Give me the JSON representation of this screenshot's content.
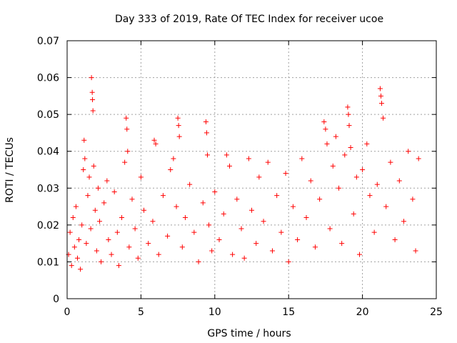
{
  "chart_data": {
    "type": "scatter",
    "title": "Day 333 of 2019, Rate Of TEC Index for receiver ucoe",
    "xlabel": "GPS time / hours",
    "ylabel": "ROTI / TECUs",
    "xlim": [
      0,
      25
    ],
    "ylim": [
      0,
      0.07
    ],
    "xticks": [
      0,
      5,
      10,
      15,
      20,
      25
    ],
    "xtick_labels": [
      "0",
      "5",
      "10",
      "15",
      "20",
      "25"
    ],
    "yticks": [
      0,
      0.01,
      0.02,
      0.03,
      0.04,
      0.05,
      0.06,
      0.07
    ],
    "ytick_labels": [
      "0",
      "0.01",
      "0.02",
      "0.03",
      "0.04",
      "0.05",
      "0.06",
      "0.07"
    ],
    "grid": true,
    "marker": "+",
    "color": "#ff0000",
    "series": [
      {
        "name": "ROTI",
        "points": [
          [
            0.1,
            0.012
          ],
          [
            0.2,
            0.018
          ],
          [
            0.3,
            0.009
          ],
          [
            0.4,
            0.022
          ],
          [
            0.5,
            0.014
          ],
          [
            0.6,
            0.025
          ],
          [
            0.7,
            0.011
          ],
          [
            0.8,
            0.016
          ],
          [
            0.9,
            0.008
          ],
          [
            1.0,
            0.02
          ],
          [
            1.1,
            0.035
          ],
          [
            1.15,
            0.043
          ],
          [
            1.2,
            0.038
          ],
          [
            1.3,
            0.015
          ],
          [
            1.4,
            0.028
          ],
          [
            1.5,
            0.033
          ],
          [
            1.6,
            0.019
          ],
          [
            1.65,
            0.06
          ],
          [
            1.7,
            0.056
          ],
          [
            1.72,
            0.054
          ],
          [
            1.75,
            0.051
          ],
          [
            1.8,
            0.036
          ],
          [
            1.9,
            0.024
          ],
          [
            2.0,
            0.013
          ],
          [
            2.1,
            0.03
          ],
          [
            2.2,
            0.021
          ],
          [
            2.3,
            0.01
          ],
          [
            2.5,
            0.026
          ],
          [
            2.7,
            0.032
          ],
          [
            2.8,
            0.016
          ],
          [
            3.0,
            0.012
          ],
          [
            3.2,
            0.029
          ],
          [
            3.4,
            0.018
          ],
          [
            3.5,
            0.009
          ],
          [
            3.7,
            0.022
          ],
          [
            3.9,
            0.037
          ],
          [
            4.0,
            0.049
          ],
          [
            4.05,
            0.046
          ],
          [
            4.1,
            0.04
          ],
          [
            4.2,
            0.014
          ],
          [
            4.4,
            0.027
          ],
          [
            4.6,
            0.019
          ],
          [
            4.8,
            0.011
          ],
          [
            5.0,
            0.033
          ],
          [
            5.2,
            0.024
          ],
          [
            5.5,
            0.015
          ],
          [
            5.8,
            0.021
          ],
          [
            5.9,
            0.043
          ],
          [
            6.0,
            0.042
          ],
          [
            6.2,
            0.012
          ],
          [
            6.5,
            0.028
          ],
          [
            6.8,
            0.017
          ],
          [
            7.0,
            0.035
          ],
          [
            7.2,
            0.038
          ],
          [
            7.4,
            0.025
          ],
          [
            7.5,
            0.049
          ],
          [
            7.55,
            0.047
          ],
          [
            7.6,
            0.044
          ],
          [
            7.8,
            0.014
          ],
          [
            8.0,
            0.022
          ],
          [
            8.3,
            0.031
          ],
          [
            8.6,
            0.018
          ],
          [
            8.9,
            0.01
          ],
          [
            9.2,
            0.026
          ],
          [
            9.4,
            0.048
          ],
          [
            9.45,
            0.045
          ],
          [
            9.5,
            0.039
          ],
          [
            9.6,
            0.02
          ],
          [
            9.8,
            0.013
          ],
          [
            10.0,
            0.029
          ],
          [
            10.3,
            0.016
          ],
          [
            10.6,
            0.023
          ],
          [
            10.8,
            0.039
          ],
          [
            11.0,
            0.036
          ],
          [
            11.2,
            0.012
          ],
          [
            11.5,
            0.027
          ],
          [
            11.8,
            0.019
          ],
          [
            12.0,
            0.011
          ],
          [
            12.3,
            0.038
          ],
          [
            12.5,
            0.024
          ],
          [
            12.8,
            0.015
          ],
          [
            13.0,
            0.033
          ],
          [
            13.3,
            0.021
          ],
          [
            13.6,
            0.037
          ],
          [
            13.9,
            0.013
          ],
          [
            14.2,
            0.028
          ],
          [
            14.5,
            0.018
          ],
          [
            14.8,
            0.034
          ],
          [
            15.0,
            0.01
          ],
          [
            15.3,
            0.025
          ],
          [
            15.6,
            0.016
          ],
          [
            15.9,
            0.038
          ],
          [
            16.2,
            0.022
          ],
          [
            16.5,
            0.032
          ],
          [
            16.8,
            0.014
          ],
          [
            17.1,
            0.027
          ],
          [
            17.4,
            0.048
          ],
          [
            17.5,
            0.046
          ],
          [
            17.6,
            0.042
          ],
          [
            17.8,
            0.019
          ],
          [
            18.0,
            0.036
          ],
          [
            18.2,
            0.044
          ],
          [
            18.4,
            0.03
          ],
          [
            18.6,
            0.015
          ],
          [
            18.8,
            0.039
          ],
          [
            19.0,
            0.052
          ],
          [
            19.05,
            0.05
          ],
          [
            19.1,
            0.047
          ],
          [
            19.2,
            0.041
          ],
          [
            19.4,
            0.023
          ],
          [
            19.6,
            0.033
          ],
          [
            19.8,
            0.012
          ],
          [
            20.0,
            0.035
          ],
          [
            20.3,
            0.042
          ],
          [
            20.5,
            0.028
          ],
          [
            20.8,
            0.018
          ],
          [
            21.0,
            0.031
          ],
          [
            21.2,
            0.057
          ],
          [
            21.25,
            0.055
          ],
          [
            21.3,
            0.053
          ],
          [
            21.4,
            0.049
          ],
          [
            21.6,
            0.025
          ],
          [
            21.9,
            0.037
          ],
          [
            22.2,
            0.016
          ],
          [
            22.5,
            0.032
          ],
          [
            22.8,
            0.021
          ],
          [
            23.1,
            0.04
          ],
          [
            23.4,
            0.027
          ],
          [
            23.6,
            0.013
          ],
          [
            23.8,
            0.038
          ]
        ]
      }
    ]
  }
}
